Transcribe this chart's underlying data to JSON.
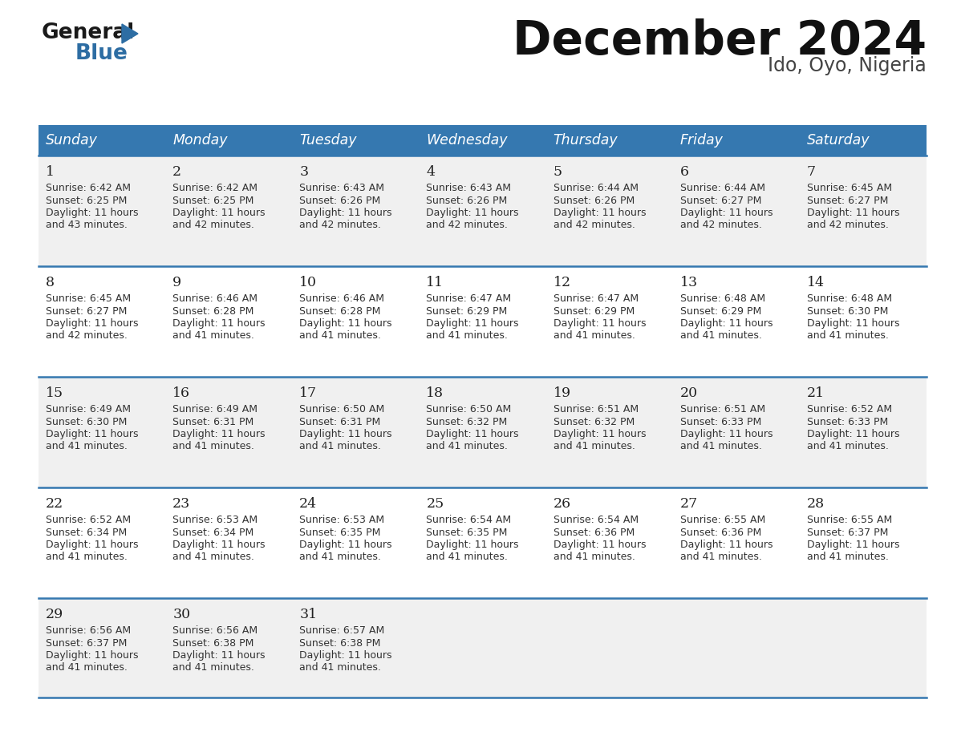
{
  "title": "December 2024",
  "subtitle": "Ido, Oyo, Nigeria",
  "header_color": "#3578b0",
  "header_text_color": "#ffffff",
  "days_of_week": [
    "Sunday",
    "Monday",
    "Tuesday",
    "Wednesday",
    "Thursday",
    "Friday",
    "Saturday"
  ],
  "bg_color": "#ffffff",
  "row_bg_colors": [
    "#f0f0f0",
    "#ffffff",
    "#f0f0f0",
    "#ffffff",
    "#f0f0f0"
  ],
  "separator_color": "#3578b0",
  "text_color": "#333333",
  "day_number_color": "#222222",
  "calendar_data": [
    [
      {
        "day": "1",
        "sunrise": "6:42 AM",
        "sunset": "6:25 PM",
        "daylight_h": "11 hours",
        "daylight_m": "43 minutes"
      },
      {
        "day": "2",
        "sunrise": "6:42 AM",
        "sunset": "6:25 PM",
        "daylight_h": "11 hours",
        "daylight_m": "42 minutes"
      },
      {
        "day": "3",
        "sunrise": "6:43 AM",
        "sunset": "6:26 PM",
        "daylight_h": "11 hours",
        "daylight_m": "42 minutes"
      },
      {
        "day": "4",
        "sunrise": "6:43 AM",
        "sunset": "6:26 PM",
        "daylight_h": "11 hours",
        "daylight_m": "42 minutes"
      },
      {
        "day": "5",
        "sunrise": "6:44 AM",
        "sunset": "6:26 PM",
        "daylight_h": "11 hours",
        "daylight_m": "42 minutes"
      },
      {
        "day": "6",
        "sunrise": "6:44 AM",
        "sunset": "6:27 PM",
        "daylight_h": "11 hours",
        "daylight_m": "42 minutes"
      },
      {
        "day": "7",
        "sunrise": "6:45 AM",
        "sunset": "6:27 PM",
        "daylight_h": "11 hours",
        "daylight_m": "42 minutes"
      }
    ],
    [
      {
        "day": "8",
        "sunrise": "6:45 AM",
        "sunset": "6:27 PM",
        "daylight_h": "11 hours",
        "daylight_m": "42 minutes"
      },
      {
        "day": "9",
        "sunrise": "6:46 AM",
        "sunset": "6:28 PM",
        "daylight_h": "11 hours",
        "daylight_m": "41 minutes"
      },
      {
        "day": "10",
        "sunrise": "6:46 AM",
        "sunset": "6:28 PM",
        "daylight_h": "11 hours",
        "daylight_m": "41 minutes"
      },
      {
        "day": "11",
        "sunrise": "6:47 AM",
        "sunset": "6:29 PM",
        "daylight_h": "11 hours",
        "daylight_m": "41 minutes"
      },
      {
        "day": "12",
        "sunrise": "6:47 AM",
        "sunset": "6:29 PM",
        "daylight_h": "11 hours",
        "daylight_m": "41 minutes"
      },
      {
        "day": "13",
        "sunrise": "6:48 AM",
        "sunset": "6:29 PM",
        "daylight_h": "11 hours",
        "daylight_m": "41 minutes"
      },
      {
        "day": "14",
        "sunrise": "6:48 AM",
        "sunset": "6:30 PM",
        "daylight_h": "11 hours",
        "daylight_m": "41 minutes"
      }
    ],
    [
      {
        "day": "15",
        "sunrise": "6:49 AM",
        "sunset": "6:30 PM",
        "daylight_h": "11 hours",
        "daylight_m": "41 minutes"
      },
      {
        "day": "16",
        "sunrise": "6:49 AM",
        "sunset": "6:31 PM",
        "daylight_h": "11 hours",
        "daylight_m": "41 minutes"
      },
      {
        "day": "17",
        "sunrise": "6:50 AM",
        "sunset": "6:31 PM",
        "daylight_h": "11 hours",
        "daylight_m": "41 minutes"
      },
      {
        "day": "18",
        "sunrise": "6:50 AM",
        "sunset": "6:32 PM",
        "daylight_h": "11 hours",
        "daylight_m": "41 minutes"
      },
      {
        "day": "19",
        "sunrise": "6:51 AM",
        "sunset": "6:32 PM",
        "daylight_h": "11 hours",
        "daylight_m": "41 minutes"
      },
      {
        "day": "20",
        "sunrise": "6:51 AM",
        "sunset": "6:33 PM",
        "daylight_h": "11 hours",
        "daylight_m": "41 minutes"
      },
      {
        "day": "21",
        "sunrise": "6:52 AM",
        "sunset": "6:33 PM",
        "daylight_h": "11 hours",
        "daylight_m": "41 minutes"
      }
    ],
    [
      {
        "day": "22",
        "sunrise": "6:52 AM",
        "sunset": "6:34 PM",
        "daylight_h": "11 hours",
        "daylight_m": "41 minutes"
      },
      {
        "day": "23",
        "sunrise": "6:53 AM",
        "sunset": "6:34 PM",
        "daylight_h": "11 hours",
        "daylight_m": "41 minutes"
      },
      {
        "day": "24",
        "sunrise": "6:53 AM",
        "sunset": "6:35 PM",
        "daylight_h": "11 hours",
        "daylight_m": "41 minutes"
      },
      {
        "day": "25",
        "sunrise": "6:54 AM",
        "sunset": "6:35 PM",
        "daylight_h": "11 hours",
        "daylight_m": "41 minutes"
      },
      {
        "day": "26",
        "sunrise": "6:54 AM",
        "sunset": "6:36 PM",
        "daylight_h": "11 hours",
        "daylight_m": "41 minutes"
      },
      {
        "day": "27",
        "sunrise": "6:55 AM",
        "sunset": "6:36 PM",
        "daylight_h": "11 hours",
        "daylight_m": "41 minutes"
      },
      {
        "day": "28",
        "sunrise": "6:55 AM",
        "sunset": "6:37 PM",
        "daylight_h": "11 hours",
        "daylight_m": "41 minutes"
      }
    ],
    [
      {
        "day": "29",
        "sunrise": "6:56 AM",
        "sunset": "6:37 PM",
        "daylight_h": "11 hours",
        "daylight_m": "41 minutes"
      },
      {
        "day": "30",
        "sunrise": "6:56 AM",
        "sunset": "6:38 PM",
        "daylight_h": "11 hours",
        "daylight_m": "41 minutes"
      },
      {
        "day": "31",
        "sunrise": "6:57 AM",
        "sunset": "6:38 PM",
        "daylight_h": "11 hours",
        "daylight_m": "41 minutes"
      },
      null,
      null,
      null,
      null
    ]
  ]
}
